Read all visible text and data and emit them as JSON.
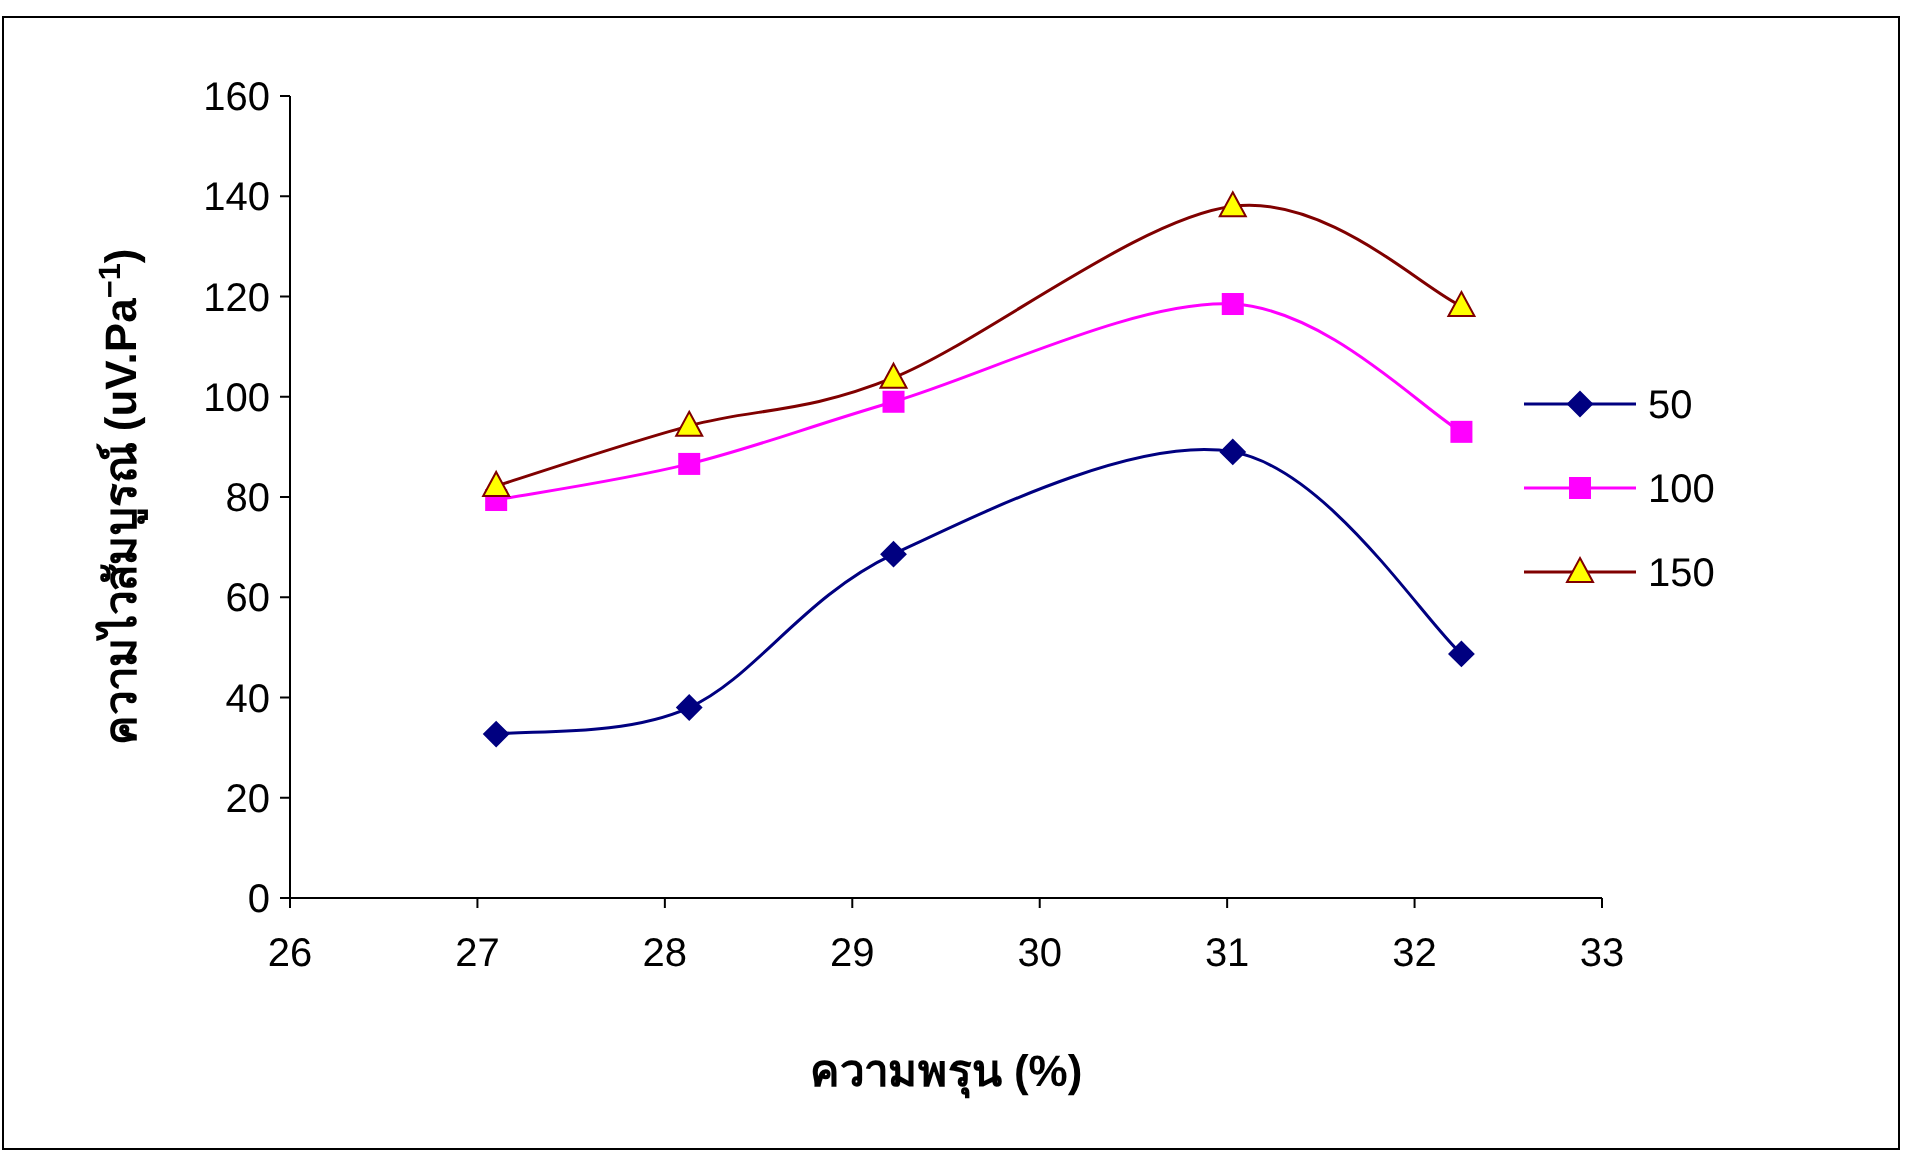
{
  "chart_data": {
    "type": "line",
    "xlabel": "ความพรุน (%)",
    "ylabel": "ความไวสัมบูรณ์ (uV.Pa$^{−1}$)",
    "x": [
      27.1,
      28.13,
      29.22,
      31.03,
      32.25
    ],
    "series": [
      {
        "name": "50",
        "color": "#000080",
        "marker": "diamond",
        "values": [
          32.7,
          38,
          68.6,
          89,
          48.7
        ]
      },
      {
        "name": "100",
        "color": "#ff00ff",
        "marker": "square",
        "values": [
          79.4,
          86.6,
          99,
          118.5,
          93
        ]
      },
      {
        "name": "150",
        "color": "#800000",
        "marker": "triangle",
        "values": [
          82.2,
          94.2,
          103.8,
          138,
          118.1
        ]
      }
    ],
    "xlim": [
      26,
      33
    ],
    "xticks": [
      26,
      27,
      28,
      29,
      30,
      31,
      32,
      33
    ],
    "ylim": [
      0,
      160
    ],
    "yticks": [
      0,
      20,
      40,
      60,
      80,
      100,
      120,
      140,
      160
    ],
    "grid": false,
    "legend": "right",
    "line_style": "solid"
  }
}
